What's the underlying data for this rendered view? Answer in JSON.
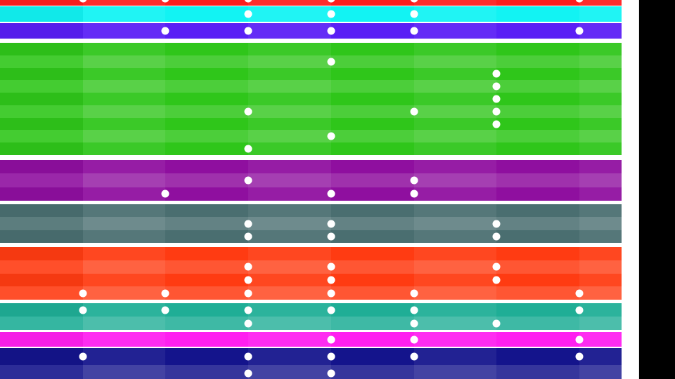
{
  "sequencer": {
    "columns": 8,
    "step_color": "#ffffff",
    "tracks": [
      {
        "id": "red",
        "color": "#ff1e1e",
        "rows": 1,
        "active": [
          [
            0,
            1
          ],
          [
            0,
            2
          ],
          [
            0,
            3
          ],
          [
            0,
            4
          ],
          [
            0,
            5
          ],
          [
            0,
            7
          ]
        ]
      },
      {
        "id": "cyan",
        "color": "#12f3f3",
        "rows": 1,
        "active": [
          [
            0,
            3
          ],
          [
            0,
            4
          ],
          [
            0,
            5
          ]
        ]
      },
      {
        "id": "violet",
        "color": "#5a1ff5",
        "rows": 1,
        "active": [
          [
            0,
            2
          ],
          [
            0,
            3
          ],
          [
            0,
            4
          ],
          [
            0,
            5
          ],
          [
            0,
            7
          ]
        ]
      },
      {
        "id": "green",
        "color": "#2fc61a",
        "rows": 9,
        "active": [
          [
            1,
            4
          ],
          [
            2,
            6
          ],
          [
            3,
            6
          ],
          [
            4,
            6
          ],
          [
            5,
            6
          ],
          [
            5,
            3
          ],
          [
            5,
            5
          ],
          [
            6,
            6
          ],
          [
            7,
            4
          ],
          [
            8,
            3
          ]
        ]
      },
      {
        "id": "purple",
        "color": "#8f0f9f",
        "rows": 3,
        "active": [
          [
            1,
            3
          ],
          [
            1,
            5
          ],
          [
            2,
            2
          ],
          [
            2,
            4
          ],
          [
            2,
            5
          ]
        ]
      },
      {
        "id": "slate",
        "color": "#4a6e70",
        "rows": 3,
        "active": [
          [
            1,
            3
          ],
          [
            1,
            4
          ],
          [
            1,
            6
          ],
          [
            2,
            3
          ],
          [
            2,
            4
          ],
          [
            2,
            6
          ]
        ]
      },
      {
        "id": "orange",
        "color": "#ff3b12",
        "rows": 4,
        "active": [
          [
            1,
            3
          ],
          [
            1,
            4
          ],
          [
            1,
            6
          ],
          [
            2,
            3
          ],
          [
            2,
            4
          ],
          [
            2,
            6
          ],
          [
            3,
            1
          ],
          [
            3,
            2
          ],
          [
            3,
            3
          ],
          [
            3,
            4
          ],
          [
            3,
            5
          ],
          [
            3,
            7
          ]
        ]
      },
      {
        "id": "teal",
        "color": "#1fae96",
        "rows": 2,
        "active": [
          [
            0,
            1
          ],
          [
            0,
            2
          ],
          [
            0,
            3
          ],
          [
            0,
            4
          ],
          [
            0,
            5
          ],
          [
            0,
            7
          ],
          [
            1,
            3
          ],
          [
            1,
            5
          ],
          [
            1,
            6
          ]
        ]
      },
      {
        "id": "magenta",
        "color": "#ff1ff0",
        "rows": 1,
        "active": [
          [
            0,
            4
          ],
          [
            0,
            5
          ],
          [
            0,
            7
          ]
        ]
      },
      {
        "id": "navy",
        "color": "#14148c",
        "rows": 2,
        "active": [
          [
            0,
            1
          ],
          [
            0,
            3
          ],
          [
            0,
            4
          ],
          [
            0,
            5
          ],
          [
            0,
            7
          ],
          [
            1,
            3
          ],
          [
            1,
            4
          ]
        ]
      }
    ]
  }
}
